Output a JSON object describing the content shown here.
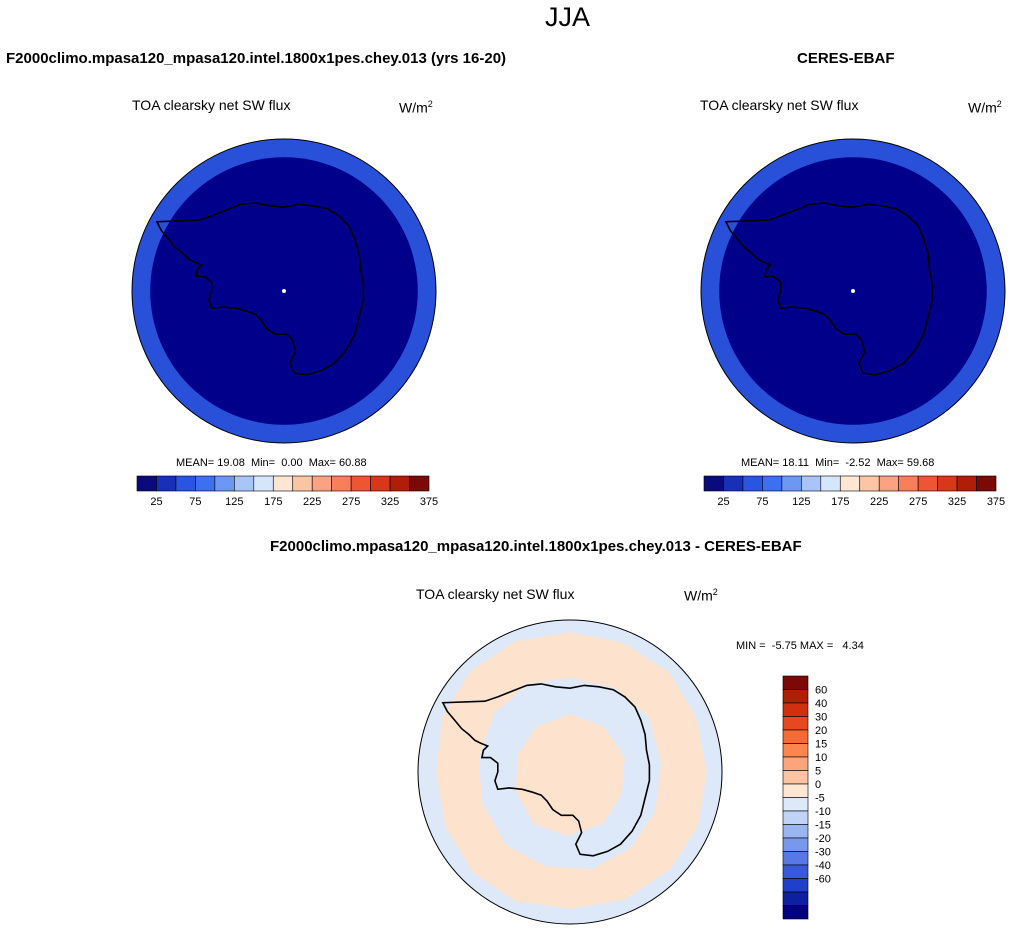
{
  "page": {
    "title": "JJA"
  },
  "colors": {
    "map_dark": "#00008b",
    "map_ring": "#2850d8",
    "diff_pos": "#fde3cd",
    "diff_neg": "#dde8f9",
    "coast": "#000000",
    "abs_palette": [
      "#0a0a7c",
      "#1830b8",
      "#2a55e0",
      "#3c70f0",
      "#6c98f4",
      "#a8c4f8",
      "#d6e6fa",
      "#fde6d4",
      "#fcc5a4",
      "#fca182",
      "#f87f5a",
      "#ee5533",
      "#d83818",
      "#b01e08",
      "#7c0808"
    ],
    "diff_palette": [
      "#7c0808",
      "#b01e08",
      "#d03010",
      "#e84820",
      "#f86a34",
      "#fc8650",
      "#fca47c",
      "#fdc4a4",
      "#fde6d4",
      "#dde8f9",
      "#c0d2f6",
      "#9ab6f2",
      "#7898ee",
      "#5878e6",
      "#3a58de",
      "#2040cc",
      "#0c20a0",
      "#000080"
    ]
  },
  "chart_data": [
    {
      "type": "heatmap",
      "projection": "south-polar-stereographic",
      "title": "F2000climo.mpasa120_mpasa120.intel.1800x1pes.chey.013 (yrs 16-20)",
      "subtitle": "TOA clearsky net SW flux",
      "units_label": "W/m",
      "units_exp": "2",
      "stats": {
        "mean_label": "MEAN=",
        "mean": "19.08",
        "min_label": "Min=",
        "min": "0.00",
        "max_label": "Max=",
        "max": "60.88"
      },
      "colorbar": {
        "levels": [
          25,
          50,
          75,
          100,
          125,
          150,
          175,
          200,
          225,
          250,
          275,
          300,
          325,
          350,
          375
        ],
        "tick_labels": [
          "25",
          "75",
          "125",
          "175",
          "225",
          "275",
          "325",
          "375"
        ]
      }
    },
    {
      "type": "heatmap",
      "projection": "south-polar-stereographic",
      "title": "CERES-EBAF",
      "subtitle": "TOA clearsky net SW flux",
      "units_label": "W/m",
      "units_exp": "2",
      "stats": {
        "mean_label": "MEAN=",
        "mean": "18.11",
        "min_label": "Min=",
        "min": "-2.52",
        "max_label": "Max=",
        "max": "59.68"
      },
      "colorbar": {
        "levels": [
          25,
          50,
          75,
          100,
          125,
          150,
          175,
          200,
          225,
          250,
          275,
          300,
          325,
          350,
          375
        ],
        "tick_labels": [
          "25",
          "75",
          "125",
          "175",
          "225",
          "275",
          "325",
          "375"
        ]
      }
    },
    {
      "type": "heatmap",
      "projection": "south-polar-stereographic",
      "title": "F2000climo.mpasa120_mpasa120.intel.1800x1pes.chey.013 - CERES-EBAF",
      "subtitle": "TOA clearsky net SW flux",
      "units_label": "W/m",
      "units_exp": "2",
      "stats": {
        "min_label": "MIN =",
        "min": "-5.75",
        "max_label": "MAX =",
        "max": "4.34"
      },
      "colorbar": {
        "levels": [
          60,
          40,
          30,
          20,
          15,
          10,
          5,
          0,
          -5,
          -10,
          -15,
          -20,
          -30,
          -40,
          -60
        ],
        "tick_labels": [
          "60",
          "40",
          "30",
          "20",
          "15",
          "10",
          "5",
          "0",
          "-5",
          "-10",
          "-15",
          "-20",
          "-30",
          "-40",
          "-60"
        ]
      }
    }
  ]
}
